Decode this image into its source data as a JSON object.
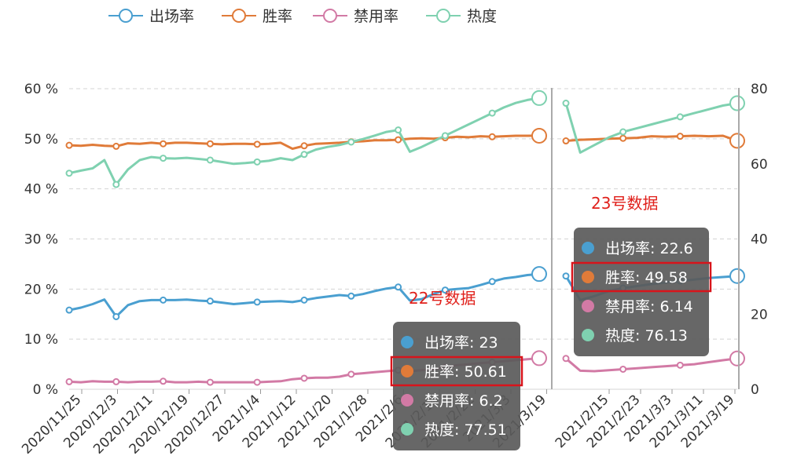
{
  "colors": {
    "出场率": "#4a9fd0",
    "胜率": "#e07b39",
    "禁用率": "#d27aa5",
    "热度": "#7fd1b0",
    "grid": "#d4d4d4",
    "tooltip_bg": "#5a5a5a",
    "highlight": "#d8141b",
    "annotation": "#e0201b"
  },
  "legend": [
    "出场率",
    "胜率",
    "禁用率",
    "热度"
  ],
  "panels": [
    {
      "x_ticks": [
        "2020/11/25",
        "2020/12/3",
        "2020/12/11",
        "2020/12/19",
        "2020/12/27",
        "2021/1/4",
        "2021/1/12",
        "2021/1/20",
        "2021/1/28",
        "2021/2/6",
        "2021/2/14",
        "2021/2/22",
        "2021/3/3",
        "2021/3/19"
      ],
      "y_left_ticks": [
        "0 %",
        "10 %",
        "20 %",
        "30 %",
        "40 %",
        "50 %",
        "60 %"
      ]
    },
    {
      "x_ticks": [
        "2021/2/15",
        "2021/2/23",
        "2021/3/3",
        "2021/3/11",
        "2021/3/19"
      ],
      "y_right_ticks": [
        "0",
        "20",
        "40",
        "60",
        "80"
      ]
    }
  ],
  "tooltips": [
    {
      "annotation": "22号数据",
      "rows": [
        {
          "label": "出场率",
          "value": "23"
        },
        {
          "label": "胜率",
          "value": "50.61"
        },
        {
          "label": "禁用率",
          "value": "6.2"
        },
        {
          "label": "热度",
          "value": "77.51"
        }
      ],
      "highlighted_row": 1
    },
    {
      "annotation": "23号数据",
      "rows": [
        {
          "label": "出场率",
          "value": "22.6"
        },
        {
          "label": "胜率",
          "value": "49.58"
        },
        {
          "label": "禁用率",
          "value": "6.14"
        },
        {
          "label": "热度",
          "value": "76.13"
        }
      ],
      "highlighted_row": 1
    }
  ],
  "chart_data": {
    "type": "line",
    "x_range": [
      "2020/11/25",
      "2021/3/23"
    ],
    "ylim_left": [
      0,
      60
    ],
    "ylim_right": [
      0,
      80
    ],
    "ylabel_left_unit": "%",
    "grid": true,
    "legend_position": "top-left",
    "series": [
      {
        "name": "出场率",
        "axis": "left",
        "values": [
          15.8,
          16.3,
          17.0,
          17.9,
          14.5,
          16.8,
          17.6,
          17.8,
          17.8,
          17.8,
          17.9,
          17.7,
          17.6,
          17.3,
          17.0,
          17.2,
          17.4,
          17.5,
          17.6,
          17.4,
          17.8,
          18.2,
          18.5,
          18.8,
          18.6,
          19.0,
          19.6,
          20.1,
          20.4,
          17.7,
          18.0,
          19.0,
          19.8,
          20.0,
          20.2,
          20.8,
          21.5,
          22.1,
          22.4,
          22.8,
          23.0,
          22.6,
          17.8,
          18.6,
          19.6,
          20.2,
          20.6,
          21.0,
          21.3,
          21.6,
          21.9,
          22.2,
          22.4,
          22.6
        ]
      },
      {
        "name": "胜率",
        "axis": "left",
        "values": [
          48.7,
          48.6,
          48.8,
          48.6,
          48.5,
          49.1,
          49.0,
          49.2,
          49.0,
          49.2,
          49.2,
          49.1,
          49.0,
          48.9,
          49.0,
          49.0,
          48.9,
          49.0,
          49.2,
          48.0,
          48.6,
          49.0,
          49.1,
          49.2,
          49.4,
          49.5,
          49.7,
          49.7,
          49.8,
          50.0,
          50.1,
          50.0,
          50.2,
          50.4,
          50.3,
          50.5,
          50.4,
          50.5,
          50.6,
          50.6,
          50.61,
          49.58,
          49.8,
          49.9,
          50.0,
          50.1,
          50.2,
          50.5,
          50.4,
          50.5,
          50.6,
          50.5,
          50.6,
          49.6
        ]
      },
      {
        "name": "禁用率",
        "axis": "left",
        "values": [
          1.5,
          1.4,
          1.6,
          1.5,
          1.5,
          1.4,
          1.5,
          1.5,
          1.6,
          1.4,
          1.4,
          1.5,
          1.4,
          1.4,
          1.4,
          1.4,
          1.4,
          1.5,
          1.6,
          2.0,
          2.2,
          2.3,
          2.3,
          2.5,
          3.0,
          3.2,
          3.4,
          3.6,
          3.8,
          3.6,
          3.8,
          4.0,
          4.4,
          4.8,
          5.0,
          5.2,
          5.4,
          5.6,
          5.8,
          6.0,
          6.2,
          6.14,
          3.7,
          3.6,
          3.8,
          4.0,
          4.2,
          4.4,
          4.6,
          4.8,
          5.0,
          5.4,
          5.8,
          6.14
        ]
      },
      {
        "name": "热度",
        "axis": "right",
        "values": [
          57.5,
          58.2,
          58.8,
          61.0,
          54.5,
          58.5,
          61.0,
          61.8,
          61.5,
          61.4,
          61.6,
          61.3,
          61.0,
          60.5,
          60.0,
          60.2,
          60.5,
          60.8,
          61.5,
          61.0,
          62.5,
          63.8,
          64.5,
          65.0,
          65.8,
          66.6,
          67.5,
          68.5,
          69.0,
          63.2,
          64.5,
          66.0,
          67.5,
          69.0,
          70.5,
          72.0,
          73.5,
          75.0,
          76.2,
          77.0,
          77.51,
          76.13,
          63.0,
          65.0,
          67.0,
          68.5,
          69.5,
          70.5,
          71.5,
          72.5,
          73.5,
          74.5,
          75.5,
          76.13
        ]
      }
    ]
  }
}
